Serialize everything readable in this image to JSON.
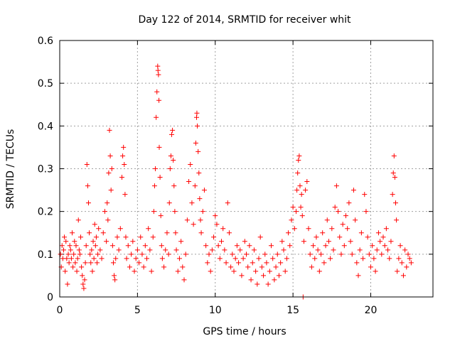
{
  "chart_data": {
    "type": "scatter",
    "title": "Day 122 of 2014, SRMTID for receiver whit",
    "xlabel": "GPS time / hours",
    "ylabel": "SRMTID / TECUs",
    "xlim": [
      0,
      24
    ],
    "ylim": [
      0,
      0.6
    ],
    "x_ticks": [
      0,
      5,
      10,
      15,
      20
    ],
    "x_tick_labels": [
      "0",
      "5",
      "10",
      "15",
      "20"
    ],
    "y_ticks": [
      0,
      0.1,
      0.2,
      0.3,
      0.4,
      0.5,
      0.6
    ],
    "y_tick_labels": [
      "0",
      "0.1",
      "0.2",
      "0.3",
      "0.4",
      "0.5",
      "0.6"
    ],
    "grid": true,
    "marker": "plus",
    "marker_color": "#ff0000",
    "series": [
      {
        "name": "SRMTID",
        "points": [
          [
            0.05,
            0.1
          ],
          [
            0.1,
            0.07
          ],
          [
            0.15,
            0.12
          ],
          [
            0.2,
            0.09
          ],
          [
            0.25,
            0.11
          ],
          [
            0.3,
            0.14
          ],
          [
            0.35,
            0.06
          ],
          [
            0.4,
            0.13
          ],
          [
            0.45,
            0.09
          ],
          [
            0.5,
            0.03
          ],
          [
            0.55,
            0.1
          ],
          [
            0.6,
            0.08
          ],
          [
            0.65,
            0.12
          ],
          [
            0.7,
            0.11
          ],
          [
            0.75,
            0.09
          ],
          [
            0.8,
            0.15
          ],
          [
            0.85,
            0.07
          ],
          [
            0.9,
            0.1
          ],
          [
            0.95,
            0.13
          ],
          [
            1.0,
            0.08
          ],
          [
            1.05,
            0.12
          ],
          [
            1.1,
            0.06
          ],
          [
            1.15,
            0.09
          ],
          [
            1.2,
            0.18
          ],
          [
            1.25,
            0.11
          ],
          [
            1.3,
            0.1
          ],
          [
            1.35,
            0.14
          ],
          [
            1.4,
            0.07
          ],
          [
            1.45,
            0.05
          ],
          [
            1.5,
            0.03
          ],
          [
            1.55,
            0.02
          ],
          [
            1.6,
            0.04
          ],
          [
            1.65,
            0.08
          ],
          [
            1.7,
            0.12
          ],
          [
            1.75,
            0.31
          ],
          [
            1.8,
            0.26
          ],
          [
            1.85,
            0.22
          ],
          [
            1.9,
            0.15
          ],
          [
            1.95,
            0.1
          ],
          [
            2.0,
            0.08
          ],
          [
            2.05,
            0.11
          ],
          [
            2.1,
            0.06
          ],
          [
            2.15,
            0.13
          ],
          [
            2.2,
            0.09
          ],
          [
            2.25,
            0.17
          ],
          [
            2.3,
            0.12
          ],
          [
            2.35,
            0.14
          ],
          [
            2.4,
            0.08
          ],
          [
            2.45,
            0.1
          ],
          [
            2.5,
            0.16
          ],
          [
            2.6,
            0.11
          ],
          [
            2.7,
            0.09
          ],
          [
            2.8,
            0.15
          ],
          [
            2.9,
            0.2
          ],
          [
            3.0,
            0.13
          ],
          [
            3.05,
            0.22
          ],
          [
            3.1,
            0.18
          ],
          [
            3.15,
            0.29
          ],
          [
            3.2,
            0.39
          ],
          [
            3.25,
            0.33
          ],
          [
            3.3,
            0.25
          ],
          [
            3.35,
            0.3
          ],
          [
            3.4,
            0.12
          ],
          [
            3.45,
            0.08
          ],
          [
            3.5,
            0.05
          ],
          [
            3.55,
            0.04
          ],
          [
            3.6,
            0.09
          ],
          [
            3.7,
            0.14
          ],
          [
            3.8,
            0.11
          ],
          [
            3.9,
            0.16
          ],
          [
            4.0,
            0.28
          ],
          [
            4.05,
            0.33
          ],
          [
            4.1,
            0.35
          ],
          [
            4.15,
            0.31
          ],
          [
            4.2,
            0.24
          ],
          [
            4.25,
            0.14
          ],
          [
            4.3,
            0.09
          ],
          [
            4.4,
            0.12
          ],
          [
            4.5,
            0.07
          ],
          [
            4.6,
            0.1
          ],
          [
            4.7,
            0.13
          ],
          [
            4.8,
            0.06
          ],
          [
            4.9,
            0.09
          ],
          [
            5.0,
            0.11
          ],
          [
            5.1,
            0.08
          ],
          [
            5.2,
            0.14
          ],
          [
            5.3,
            0.1
          ],
          [
            5.4,
            0.07
          ],
          [
            5.5,
            0.12
          ],
          [
            5.6,
            0.09
          ],
          [
            5.7,
            0.16
          ],
          [
            5.8,
            0.11
          ],
          [
            5.9,
            0.06
          ],
          [
            6.0,
            0.14
          ],
          [
            6.05,
            0.2
          ],
          [
            6.1,
            0.26
          ],
          [
            6.15,
            0.3
          ],
          [
            6.2,
            0.42
          ],
          [
            6.25,
            0.48
          ],
          [
            6.3,
            0.54
          ],
          [
            6.32,
            0.53
          ],
          [
            6.35,
            0.52
          ],
          [
            6.38,
            0.46
          ],
          [
            6.4,
            0.35
          ],
          [
            6.45,
            0.28
          ],
          [
            6.5,
            0.19
          ],
          [
            6.55,
            0.12
          ],
          [
            6.6,
            0.09
          ],
          [
            6.7,
            0.07
          ],
          [
            6.8,
            0.11
          ],
          [
            6.9,
            0.15
          ],
          [
            7.0,
            0.1
          ],
          [
            7.05,
            0.22
          ],
          [
            7.1,
            0.3
          ],
          [
            7.15,
            0.33
          ],
          [
            7.2,
            0.38
          ],
          [
            7.25,
            0.39
          ],
          [
            7.3,
            0.32
          ],
          [
            7.35,
            0.26
          ],
          [
            7.4,
            0.2
          ],
          [
            7.45,
            0.15
          ],
          [
            7.5,
            0.11
          ],
          [
            7.6,
            0.06
          ],
          [
            7.7,
            0.09
          ],
          [
            7.8,
            0.13
          ],
          [
            7.9,
            0.07
          ],
          [
            8.0,
            0.04
          ],
          [
            8.1,
            0.1
          ],
          [
            8.2,
            0.18
          ],
          [
            8.3,
            0.27
          ],
          [
            8.4,
            0.31
          ],
          [
            8.5,
            0.22
          ],
          [
            8.6,
            0.17
          ],
          [
            8.7,
            0.26
          ],
          [
            8.75,
            0.36
          ],
          [
            8.8,
            0.42
          ],
          [
            8.82,
            0.43
          ],
          [
            8.85,
            0.4
          ],
          [
            8.9,
            0.34
          ],
          [
            8.95,
            0.29
          ],
          [
            9.0,
            0.23
          ],
          [
            9.05,
            0.18
          ],
          [
            9.1,
            0.15
          ],
          [
            9.2,
            0.2
          ],
          [
            9.3,
            0.25
          ],
          [
            9.4,
            0.12
          ],
          [
            9.5,
            0.08
          ],
          [
            9.6,
            0.1
          ],
          [
            9.7,
            0.06
          ],
          [
            9.8,
            0.11
          ],
          [
            9.9,
            0.14
          ],
          [
            10.0,
            0.19
          ],
          [
            10.1,
            0.17
          ],
          [
            10.2,
            0.12
          ],
          [
            10.3,
            0.09
          ],
          [
            10.4,
            0.13
          ],
          [
            10.5,
            0.16
          ],
          [
            10.6,
            0.11
          ],
          [
            10.7,
            0.08
          ],
          [
            10.8,
            0.22
          ],
          [
            10.9,
            0.15
          ],
          [
            11.0,
            0.07
          ],
          [
            11.1,
            0.1
          ],
          [
            11.2,
            0.06
          ],
          [
            11.3,
            0.09
          ],
          [
            11.4,
            0.12
          ],
          [
            11.5,
            0.08
          ],
          [
            11.6,
            0.11
          ],
          [
            11.7,
            0.05
          ],
          [
            11.8,
            0.09
          ],
          [
            11.9,
            0.13
          ],
          [
            12.0,
            0.1
          ],
          [
            12.1,
            0.07
          ],
          [
            12.2,
            0.12
          ],
          [
            12.3,
            0.04
          ],
          [
            12.4,
            0.08
          ],
          [
            12.5,
            0.11
          ],
          [
            12.6,
            0.06
          ],
          [
            12.7,
            0.03
          ],
          [
            12.8,
            0.09
          ],
          [
            12.9,
            0.14
          ],
          [
            13.0,
            0.07
          ],
          [
            13.1,
            0.05
          ],
          [
            13.2,
            0.1
          ],
          [
            13.3,
            0.08
          ],
          [
            13.4,
            0.03
          ],
          [
            13.5,
            0.06
          ],
          [
            13.6,
            0.12
          ],
          [
            13.7,
            0.09
          ],
          [
            13.8,
            0.04
          ],
          [
            13.9,
            0.07
          ],
          [
            14.0,
            0.1
          ],
          [
            14.1,
            0.05
          ],
          [
            14.2,
            0.08
          ],
          [
            14.3,
            0.13
          ],
          [
            14.4,
            0.11
          ],
          [
            14.5,
            0.06
          ],
          [
            14.6,
            0.09
          ],
          [
            14.7,
            0.15
          ],
          [
            14.8,
            0.12
          ],
          [
            14.9,
            0.18
          ],
          [
            15.0,
            0.21
          ],
          [
            15.1,
            0.16
          ],
          [
            15.2,
            0.2
          ],
          [
            15.25,
            0.25
          ],
          [
            15.3,
            0.29
          ],
          [
            15.35,
            0.32
          ],
          [
            15.4,
            0.33
          ],
          [
            15.45,
            0.26
          ],
          [
            15.5,
            0.21
          ],
          [
            15.55,
            0.24
          ],
          [
            15.6,
            0.19
          ],
          [
            15.65,
            0.0
          ],
          [
            15.7,
            0.13
          ],
          [
            15.8,
            0.25
          ],
          [
            15.9,
            0.27
          ],
          [
            16.0,
            0.16
          ],
          [
            16.1,
            0.1
          ],
          [
            16.2,
            0.07
          ],
          [
            16.3,
            0.12
          ],
          [
            16.4,
            0.09
          ],
          [
            16.5,
            0.14
          ],
          [
            16.6,
            0.11
          ],
          [
            16.7,
            0.06
          ],
          [
            16.8,
            0.1
          ],
          [
            16.9,
            0.15
          ],
          [
            17.0,
            0.08
          ],
          [
            17.1,
            0.12
          ],
          [
            17.2,
            0.18
          ],
          [
            17.3,
            0.13
          ],
          [
            17.4,
            0.09
          ],
          [
            17.5,
            0.16
          ],
          [
            17.6,
            0.11
          ],
          [
            17.7,
            0.21
          ],
          [
            17.8,
            0.26
          ],
          [
            17.9,
            0.2
          ],
          [
            18.0,
            0.14
          ],
          [
            18.1,
            0.1
          ],
          [
            18.2,
            0.17
          ],
          [
            18.3,
            0.12
          ],
          [
            18.4,
            0.19
          ],
          [
            18.5,
            0.16
          ],
          [
            18.6,
            0.22
          ],
          [
            18.7,
            0.13
          ],
          [
            18.8,
            0.1
          ],
          [
            18.9,
            0.25
          ],
          [
            19.0,
            0.18
          ],
          [
            19.1,
            0.08
          ],
          [
            19.2,
            0.05
          ],
          [
            19.3,
            0.11
          ],
          [
            19.4,
            0.15
          ],
          [
            19.5,
            0.09
          ],
          [
            19.6,
            0.24
          ],
          [
            19.7,
            0.2
          ],
          [
            19.8,
            0.14
          ],
          [
            19.9,
            0.1
          ],
          [
            20.0,
            0.07
          ],
          [
            20.1,
            0.12
          ],
          [
            20.2,
            0.09
          ],
          [
            20.3,
            0.06
          ],
          [
            20.4,
            0.11
          ],
          [
            20.5,
            0.15
          ],
          [
            20.6,
            0.13
          ],
          [
            20.7,
            0.1
          ],
          [
            20.8,
            0.14
          ],
          [
            20.9,
            0.12
          ],
          [
            21.0,
            0.16
          ],
          [
            21.1,
            0.11
          ],
          [
            21.2,
            0.09
          ],
          [
            21.3,
            0.13
          ],
          [
            21.4,
            0.24
          ],
          [
            21.45,
            0.29
          ],
          [
            21.5,
            0.33
          ],
          [
            21.55,
            0.28
          ],
          [
            21.6,
            0.22
          ],
          [
            21.65,
            0.18
          ],
          [
            21.7,
            0.06
          ],
          [
            21.8,
            0.09
          ],
          [
            21.9,
            0.12
          ],
          [
            22.0,
            0.08
          ],
          [
            22.1,
            0.05
          ],
          [
            22.2,
            0.11
          ],
          [
            22.3,
            0.07
          ],
          [
            22.4,
            0.1
          ],
          [
            22.5,
            0.09
          ],
          [
            22.6,
            0.08
          ]
        ]
      }
    ]
  }
}
